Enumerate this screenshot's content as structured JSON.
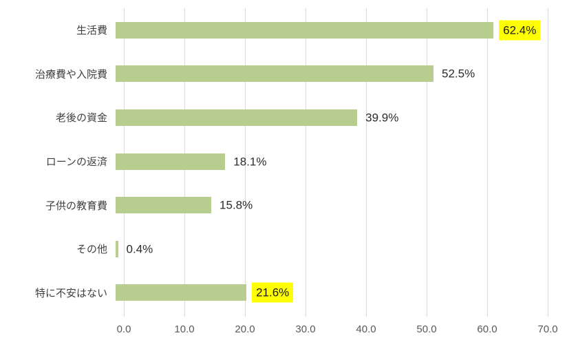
{
  "chart_data": {
    "type": "bar",
    "orientation": "horizontal",
    "title": "",
    "xlabel": "",
    "ylabel": "",
    "categories": [
      "生活費",
      "治療費や入院費",
      "老後の資金",
      "ローンの返済",
      "子供の教育費",
      "その他",
      "特に不安はない"
    ],
    "values": [
      62.4,
      52.5,
      39.9,
      18.1,
      15.8,
      0.4,
      21.6
    ],
    "value_labels": [
      "62.4%",
      "52.5%",
      "39.9%",
      "18.1%",
      "15.8%",
      "0.4%",
      "21.6%"
    ],
    "highlighted": [
      true,
      false,
      false,
      false,
      false,
      false,
      true
    ],
    "xlim": [
      0,
      70
    ],
    "x_ticks": [
      "0.0",
      "10.0",
      "20.0",
      "30.0",
      "40.0",
      "50.0",
      "60.0",
      "70.0"
    ],
    "grid": true,
    "legend": "none",
    "bar_color": "#b8cd90",
    "highlight_color": "#ffff00",
    "gridline_color": "#d9d9d9"
  }
}
